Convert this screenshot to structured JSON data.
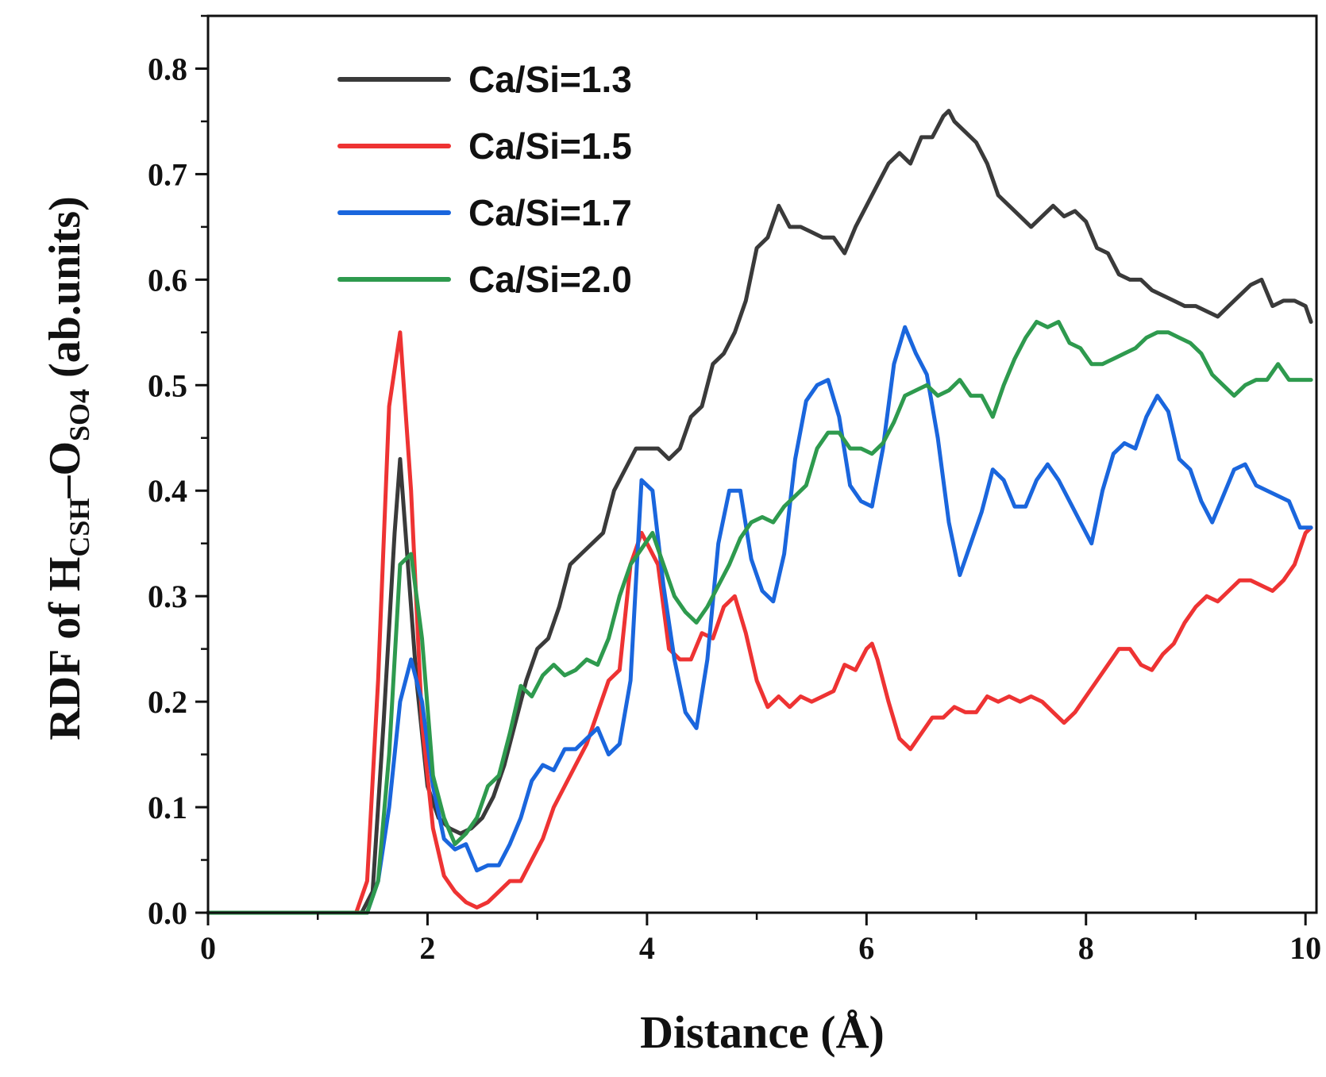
{
  "chart_data": {
    "type": "line",
    "title": "",
    "xlabel": "Distance (Å)",
    "ylabel": {
      "prefix": "RDF of H",
      "sub1": "CSH",
      "mid": "–O",
      "sub2": "SO4",
      "suffix": " (ab.units)"
    },
    "xlim": [
      0,
      10.1
    ],
    "ylim": [
      0,
      0.85
    ],
    "xticks": [
      0,
      2,
      4,
      6,
      8,
      10
    ],
    "yticks": [
      0.0,
      0.1,
      0.2,
      0.3,
      0.4,
      0.5,
      0.6,
      0.7,
      0.8
    ],
    "ytick_labels": [
      "0.0",
      "0.1",
      "0.2",
      "0.3",
      "0.4",
      "0.5",
      "0.6",
      "0.7",
      "0.8"
    ],
    "legend_position": "top-left",
    "series": [
      {
        "name": "Ca/Si=1.3",
        "color": "#3a3a3a",
        "x": [
          0,
          1.0,
          1.4,
          1.5,
          1.6,
          1.7,
          1.75,
          1.8,
          1.9,
          2.0,
          2.1,
          2.2,
          2.3,
          2.4,
          2.5,
          2.6,
          2.7,
          2.8,
          2.9,
          3.0,
          3.1,
          3.2,
          3.3,
          3.4,
          3.5,
          3.6,
          3.7,
          3.8,
          3.9,
          4.0,
          4.1,
          4.2,
          4.3,
          4.4,
          4.5,
          4.6,
          4.7,
          4.8,
          4.9,
          5.0,
          5.1,
          5.2,
          5.3,
          5.4,
          5.5,
          5.6,
          5.7,
          5.8,
          5.9,
          6.0,
          6.1,
          6.2,
          6.3,
          6.4,
          6.5,
          6.6,
          6.7,
          6.75,
          6.8,
          6.9,
          7.0,
          7.1,
          7.2,
          7.3,
          7.4,
          7.5,
          7.6,
          7.7,
          7.8,
          7.9,
          8.0,
          8.1,
          8.2,
          8.3,
          8.4,
          8.5,
          8.6,
          8.7,
          8.8,
          8.9,
          9.0,
          9.1,
          9.2,
          9.3,
          9.4,
          9.5,
          9.6,
          9.7,
          9.8,
          9.9,
          10.0,
          10.05
        ],
        "y": [
          0,
          0,
          0.0,
          0.02,
          0.18,
          0.36,
          0.43,
          0.36,
          0.22,
          0.12,
          0.09,
          0.08,
          0.075,
          0.08,
          0.09,
          0.11,
          0.14,
          0.18,
          0.22,
          0.25,
          0.26,
          0.29,
          0.33,
          0.34,
          0.35,
          0.36,
          0.4,
          0.42,
          0.44,
          0.44,
          0.44,
          0.43,
          0.44,
          0.47,
          0.48,
          0.52,
          0.53,
          0.55,
          0.58,
          0.63,
          0.64,
          0.67,
          0.65,
          0.65,
          0.645,
          0.64,
          0.64,
          0.625,
          0.65,
          0.67,
          0.69,
          0.71,
          0.72,
          0.71,
          0.735,
          0.735,
          0.755,
          0.76,
          0.75,
          0.74,
          0.73,
          0.71,
          0.68,
          0.67,
          0.66,
          0.65,
          0.66,
          0.67,
          0.66,
          0.665,
          0.655,
          0.63,
          0.625,
          0.605,
          0.6,
          0.6,
          0.59,
          0.585,
          0.58,
          0.575,
          0.575,
          0.57,
          0.565,
          0.575,
          0.585,
          0.595,
          0.6,
          0.575,
          0.58,
          0.58,
          0.575,
          0.56
        ]
      },
      {
        "name": "Ca/Si=1.5",
        "color": "#ee3333",
        "x": [
          0,
          1.0,
          1.35,
          1.45,
          1.55,
          1.65,
          1.75,
          1.85,
          1.95,
          2.05,
          2.15,
          2.25,
          2.35,
          2.45,
          2.55,
          2.65,
          2.75,
          2.85,
          2.95,
          3.05,
          3.15,
          3.25,
          3.35,
          3.45,
          3.55,
          3.65,
          3.75,
          3.85,
          3.95,
          4.0,
          4.1,
          4.2,
          4.3,
          4.4,
          4.5,
          4.6,
          4.7,
          4.8,
          4.9,
          5.0,
          5.1,
          5.2,
          5.3,
          5.4,
          5.5,
          5.6,
          5.7,
          5.8,
          5.9,
          6.0,
          6.05,
          6.1,
          6.2,
          6.3,
          6.4,
          6.5,
          6.6,
          6.7,
          6.8,
          6.9,
          7.0,
          7.1,
          7.2,
          7.3,
          7.4,
          7.5,
          7.6,
          7.7,
          7.8,
          7.9,
          8.0,
          8.1,
          8.2,
          8.3,
          8.4,
          8.5,
          8.6,
          8.7,
          8.8,
          8.9,
          9.0,
          9.1,
          9.2,
          9.3,
          9.4,
          9.5,
          9.6,
          9.7,
          9.8,
          9.9,
          10.0,
          10.05
        ],
        "y": [
          0,
          0,
          0.0,
          0.03,
          0.22,
          0.48,
          0.55,
          0.4,
          0.18,
          0.08,
          0.035,
          0.02,
          0.01,
          0.005,
          0.01,
          0.02,
          0.03,
          0.03,
          0.05,
          0.07,
          0.1,
          0.12,
          0.14,
          0.16,
          0.19,
          0.22,
          0.23,
          0.33,
          0.36,
          0.35,
          0.33,
          0.25,
          0.24,
          0.24,
          0.265,
          0.26,
          0.29,
          0.3,
          0.265,
          0.22,
          0.195,
          0.205,
          0.195,
          0.205,
          0.2,
          0.205,
          0.21,
          0.235,
          0.23,
          0.25,
          0.255,
          0.24,
          0.2,
          0.165,
          0.155,
          0.17,
          0.185,
          0.185,
          0.195,
          0.19,
          0.19,
          0.205,
          0.2,
          0.205,
          0.2,
          0.205,
          0.2,
          0.19,
          0.18,
          0.19,
          0.205,
          0.22,
          0.235,
          0.25,
          0.25,
          0.235,
          0.23,
          0.245,
          0.255,
          0.275,
          0.29,
          0.3,
          0.295,
          0.305,
          0.315,
          0.315,
          0.31,
          0.305,
          0.315,
          0.33,
          0.36,
          0.365
        ]
      },
      {
        "name": "Ca/Si=1.7",
        "color": "#1a66dd",
        "x": [
          0,
          1.0,
          1.45,
          1.55,
          1.65,
          1.75,
          1.85,
          1.95,
          2.05,
          2.15,
          2.25,
          2.35,
          2.45,
          2.55,
          2.65,
          2.75,
          2.85,
          2.95,
          3.05,
          3.15,
          3.25,
          3.35,
          3.45,
          3.55,
          3.65,
          3.75,
          3.85,
          3.95,
          4.05,
          4.15,
          4.25,
          4.35,
          4.45,
          4.55,
          4.65,
          4.75,
          4.85,
          4.95,
          5.05,
          5.15,
          5.25,
          5.35,
          5.45,
          5.55,
          5.65,
          5.75,
          5.85,
          5.95,
          6.05,
          6.15,
          6.25,
          6.35,
          6.45,
          6.55,
          6.65,
          6.75,
          6.85,
          6.95,
          7.05,
          7.15,
          7.25,
          7.35,
          7.45,
          7.55,
          7.65,
          7.75,
          7.85,
          7.95,
          8.05,
          8.15,
          8.25,
          8.35,
          8.45,
          8.55,
          8.65,
          8.75,
          8.85,
          8.95,
          9.05,
          9.15,
          9.25,
          9.35,
          9.45,
          9.55,
          9.65,
          9.75,
          9.85,
          9.95,
          10.05
        ],
        "y": [
          0,
          0,
          0.0,
          0.03,
          0.1,
          0.2,
          0.24,
          0.2,
          0.12,
          0.07,
          0.06,
          0.065,
          0.04,
          0.045,
          0.045,
          0.065,
          0.09,
          0.125,
          0.14,
          0.135,
          0.155,
          0.155,
          0.165,
          0.175,
          0.15,
          0.16,
          0.22,
          0.41,
          0.4,
          0.31,
          0.24,
          0.19,
          0.175,
          0.24,
          0.35,
          0.4,
          0.4,
          0.335,
          0.305,
          0.295,
          0.34,
          0.43,
          0.485,
          0.5,
          0.505,
          0.47,
          0.405,
          0.39,
          0.385,
          0.44,
          0.52,
          0.555,
          0.53,
          0.51,
          0.45,
          0.37,
          0.32,
          0.35,
          0.38,
          0.42,
          0.41,
          0.385,
          0.385,
          0.41,
          0.425,
          0.41,
          0.39,
          0.37,
          0.35,
          0.4,
          0.435,
          0.445,
          0.44,
          0.47,
          0.49,
          0.475,
          0.43,
          0.42,
          0.39,
          0.37,
          0.395,
          0.42,
          0.425,
          0.405,
          0.4,
          0.395,
          0.39,
          0.365,
          0.365
        ]
      },
      {
        "name": "Ca/Si=2.0",
        "color": "#2e9a4e",
        "x": [
          0,
          1.0,
          1.45,
          1.55,
          1.65,
          1.75,
          1.85,
          1.95,
          2.05,
          2.15,
          2.25,
          2.35,
          2.45,
          2.55,
          2.65,
          2.75,
          2.85,
          2.95,
          3.05,
          3.15,
          3.25,
          3.35,
          3.45,
          3.55,
          3.65,
          3.75,
          3.85,
          3.95,
          4.05,
          4.15,
          4.25,
          4.35,
          4.45,
          4.55,
          4.65,
          4.75,
          4.85,
          4.95,
          5.05,
          5.15,
          5.25,
          5.35,
          5.45,
          5.55,
          5.65,
          5.75,
          5.85,
          5.95,
          6.05,
          6.15,
          6.25,
          6.35,
          6.45,
          6.55,
          6.65,
          6.75,
          6.85,
          6.95,
          7.05,
          7.15,
          7.25,
          7.35,
          7.45,
          7.55,
          7.65,
          7.75,
          7.85,
          7.95,
          8.05,
          8.15,
          8.25,
          8.35,
          8.45,
          8.55,
          8.65,
          8.75,
          8.85,
          8.95,
          9.05,
          9.15,
          9.25,
          9.35,
          9.45,
          9.55,
          9.65,
          9.75,
          9.85,
          9.95,
          10.05
        ],
        "y": [
          0,
          0,
          0.0,
          0.03,
          0.15,
          0.33,
          0.34,
          0.26,
          0.13,
          0.09,
          0.065,
          0.075,
          0.09,
          0.12,
          0.13,
          0.17,
          0.215,
          0.205,
          0.225,
          0.235,
          0.225,
          0.23,
          0.24,
          0.235,
          0.26,
          0.3,
          0.33,
          0.345,
          0.36,
          0.33,
          0.3,
          0.285,
          0.275,
          0.29,
          0.31,
          0.33,
          0.355,
          0.37,
          0.375,
          0.37,
          0.385,
          0.395,
          0.405,
          0.44,
          0.455,
          0.455,
          0.44,
          0.44,
          0.435,
          0.445,
          0.465,
          0.49,
          0.495,
          0.5,
          0.49,
          0.495,
          0.505,
          0.49,
          0.49,
          0.47,
          0.5,
          0.525,
          0.545,
          0.56,
          0.555,
          0.56,
          0.54,
          0.535,
          0.52,
          0.52,
          0.525,
          0.53,
          0.535,
          0.545,
          0.55,
          0.55,
          0.545,
          0.54,
          0.53,
          0.51,
          0.5,
          0.49,
          0.5,
          0.505,
          0.505,
          0.52,
          0.505,
          0.505,
          0.505
        ]
      }
    ]
  }
}
